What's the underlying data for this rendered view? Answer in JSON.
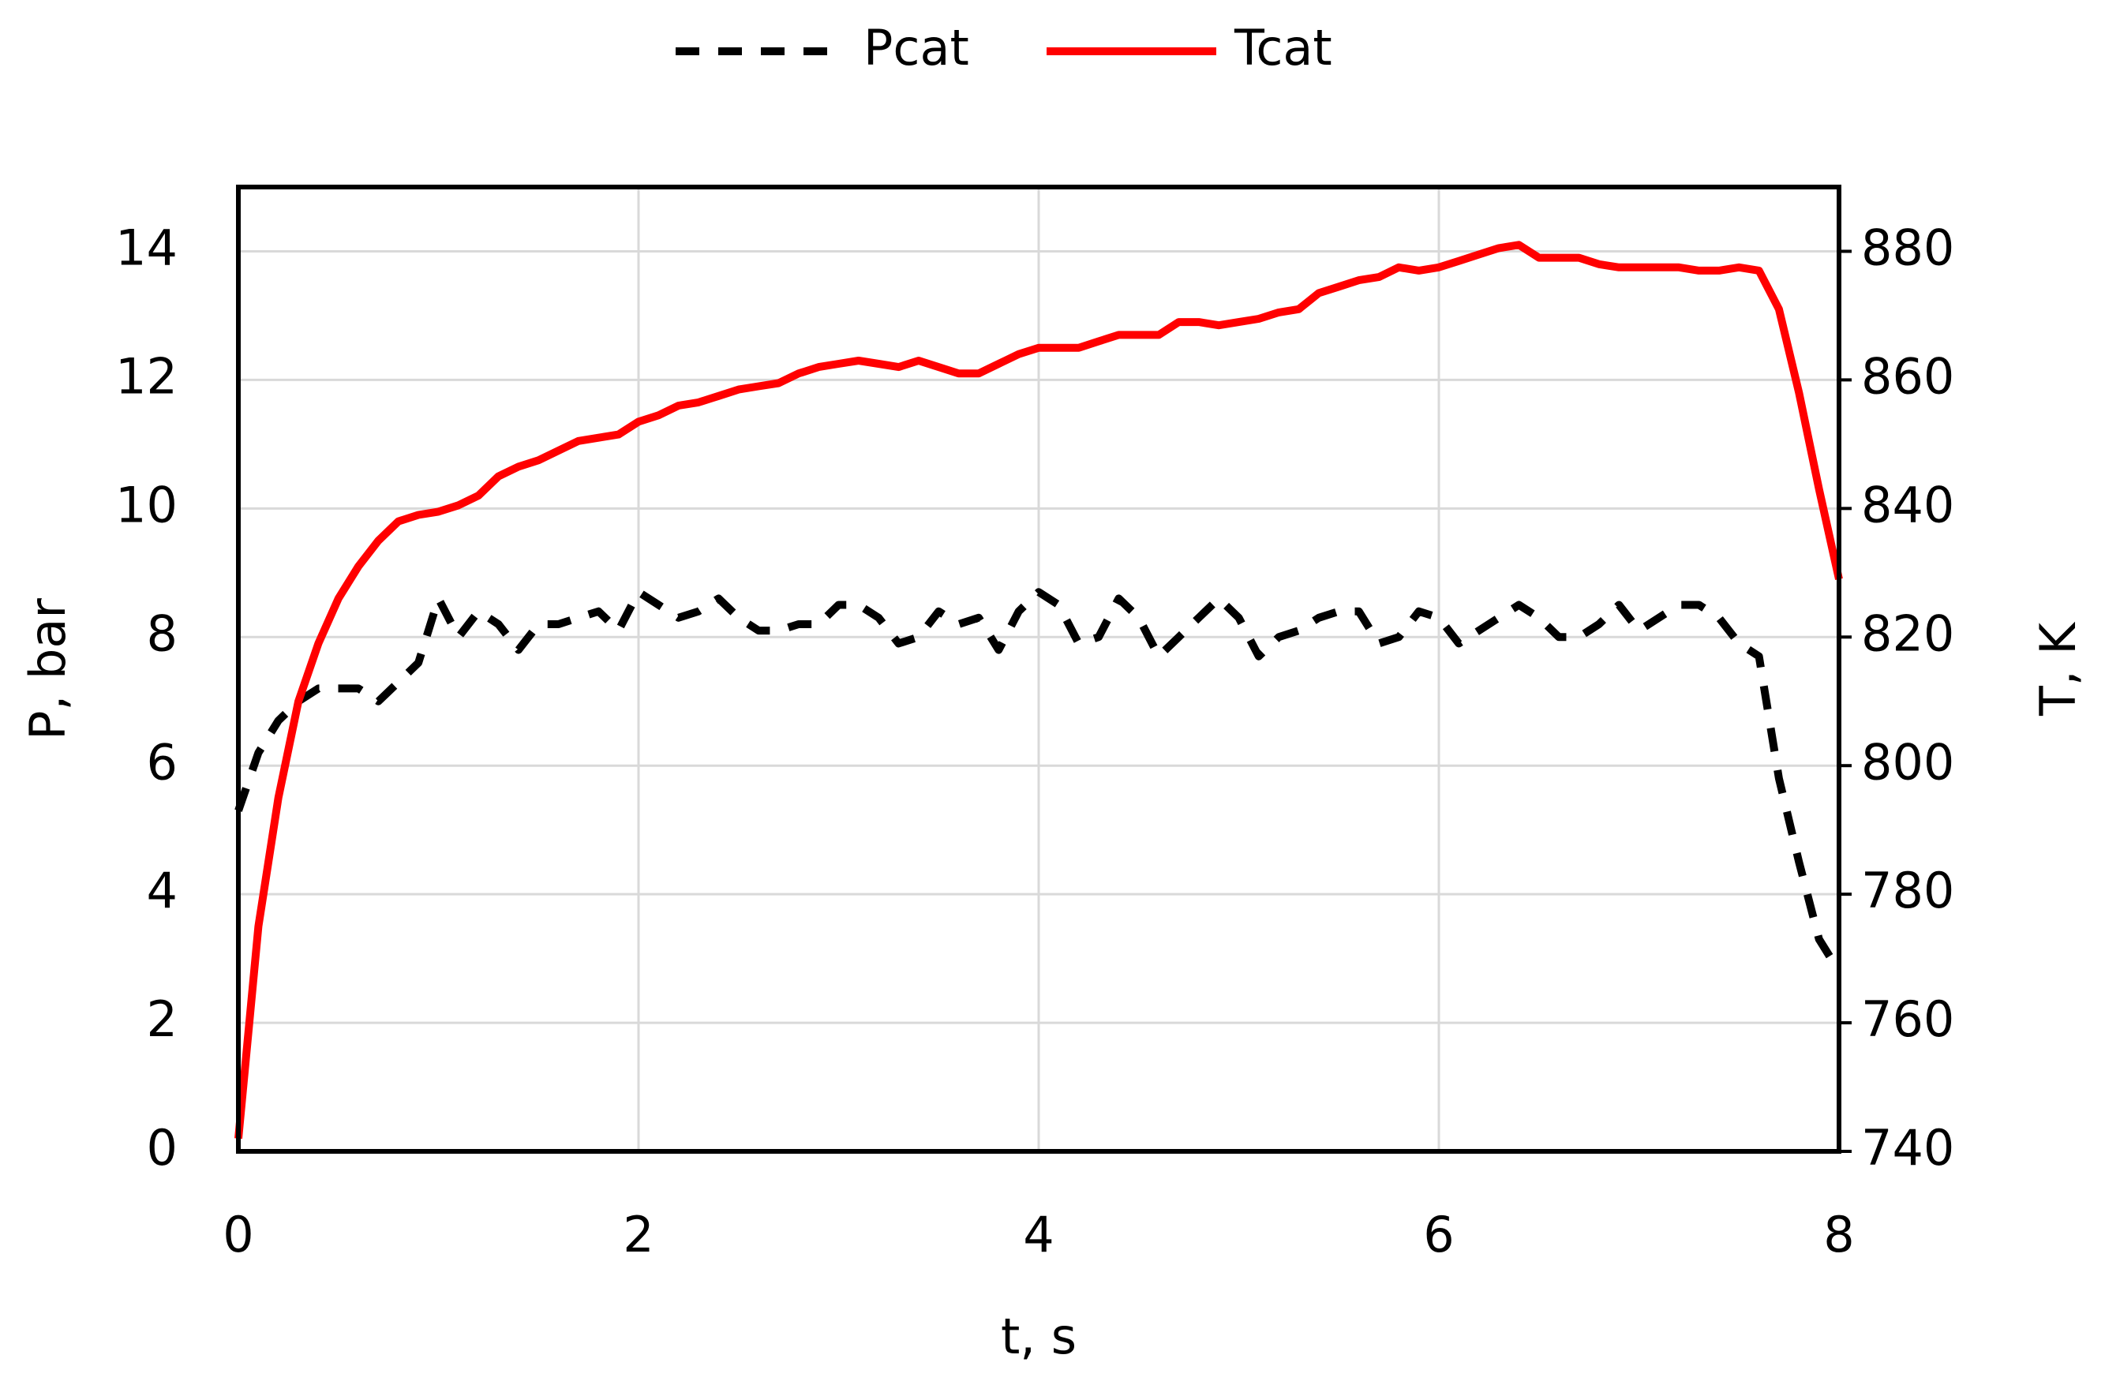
{
  "chart_data": {
    "type": "line",
    "x_label": "t, s",
    "y_label": "P, bar",
    "y2_label": "T, K",
    "xlim": [
      0,
      8
    ],
    "xticks": [
      0,
      2,
      4,
      6,
      8
    ],
    "ylim": [
      0,
      15
    ],
    "yticks": [
      0,
      2,
      4,
      6,
      8,
      10,
      12,
      14
    ],
    "y2lim": [
      740,
      890
    ],
    "y2ticks": [
      740,
      760,
      780,
      800,
      820,
      840,
      860,
      880
    ],
    "grid": true,
    "legend": "top",
    "x": [
      0,
      0.1,
      0.2,
      0.3,
      0.4,
      0.5,
      0.6,
      0.7,
      0.8,
      0.9,
      1,
      1.1,
      1.2,
      1.3,
      1.4,
      1.5,
      1.6,
      1.7,
      1.8,
      1.9,
      2,
      2.1,
      2.2,
      2.3,
      2.4,
      2.5,
      2.6,
      2.7,
      2.8,
      2.9,
      3,
      3.1,
      3.2,
      3.3,
      3.4,
      3.5,
      3.6,
      3.7,
      3.8,
      3.9,
      4,
      4.1,
      4.2,
      4.3,
      4.4,
      4.5,
      4.6,
      4.7,
      4.8,
      4.9,
      5,
      5.1,
      5.2,
      5.3,
      5.4,
      5.5,
      5.6,
      5.7,
      5.8,
      5.9,
      6,
      6.1,
      6.2,
      6.3,
      6.4,
      6.5,
      6.6,
      6.7,
      6.8,
      6.9,
      7,
      7.1,
      7.2,
      7.3,
      7.4,
      7.5,
      7.6,
      7.7,
      7.8,
      7.9,
      8
    ],
    "series": [
      {
        "name": "Pcat",
        "color": "#000000",
        "dashed": true,
        "axis": "y",
        "values": [
          5.3,
          6.2,
          6.7,
          7.0,
          7.2,
          7.2,
          7.2,
          7.0,
          7.3,
          7.6,
          8.6,
          8.0,
          8.4,
          8.2,
          7.8,
          8.2,
          8.2,
          8.3,
          8.4,
          8.1,
          8.7,
          8.5,
          8.3,
          8.4,
          8.6,
          8.3,
          8.1,
          8.1,
          8.2,
          8.2,
          8.5,
          8.5,
          8.3,
          7.9,
          8.0,
          8.4,
          8.2,
          8.3,
          7.8,
          8.4,
          8.7,
          8.5,
          7.9,
          8.0,
          8.6,
          8.3,
          7.7,
          8.0,
          8.3,
          8.6,
          8.3,
          7.7,
          8.0,
          8.1,
          8.3,
          8.4,
          8.4,
          7.9,
          8.0,
          8.4,
          8.3,
          7.9,
          8.1,
          8.3,
          8.5,
          8.3,
          8.0,
          8.0,
          8.2,
          8.5,
          8.1,
          8.3,
          8.5,
          8.5,
          8.3,
          7.9,
          7.7,
          5.8,
          4.5,
          3.3,
          2.8
        ]
      },
      {
        "name": "Tcat",
        "color": "#ff0000",
        "dashed": false,
        "axis": "y2",
        "values": [
          742,
          775,
          795,
          810,
          819,
          826,
          831,
          835,
          838,
          839,
          839.5,
          840.5,
          842,
          845,
          846.5,
          847.5,
          849,
          850.5,
          851,
          851.5,
          853.5,
          854.5,
          856,
          856.5,
          857.5,
          858.5,
          859,
          859.5,
          861,
          862,
          862.5,
          863,
          862.5,
          862,
          863,
          862,
          861,
          861,
          862.5,
          864,
          865,
          865,
          865,
          866,
          867,
          867,
          867,
          869,
          869,
          868.5,
          869,
          869.5,
          870.5,
          871,
          873.5,
          874.5,
          875.5,
          876,
          877.5,
          877,
          877.5,
          878.5,
          879.5,
          880.5,
          881,
          879,
          879,
          879,
          878,
          877.5,
          877.5,
          877.5,
          877.5,
          877,
          877,
          877.5,
          877,
          871,
          858,
          843,
          829
        ]
      }
    ]
  }
}
